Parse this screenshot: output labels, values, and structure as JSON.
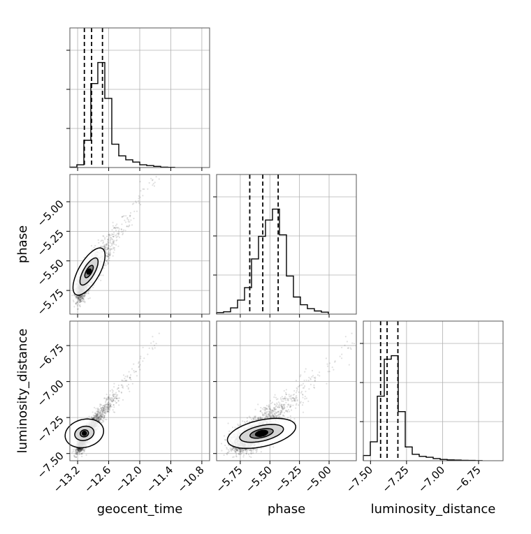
{
  "chart_data": {
    "type": "corner",
    "parameters": [
      "geocent_time",
      "phase",
      "luminosity_distance"
    ],
    "axis_labels": {
      "x": [
        "geocent_time",
        "phase",
        "luminosity_distance"
      ],
      "y": [
        "phase",
        "luminosity_distance"
      ]
    },
    "ranges": {
      "geocent_time": [
        -13.35,
        -10.65
      ],
      "phase": [
        -5.95,
        -4.77
      ],
      "luminosity_distance": [
        -7.55,
        -6.58
      ]
    },
    "ticks": {
      "geocent_time": [
        -13.2,
        -12.6,
        -12.0,
        -11.4,
        -10.8
      ],
      "phase": [
        -5.75,
        -5.5,
        -5.25,
        -5.0
      ],
      "luminosity_distance": [
        -7.5,
        -7.25,
        -7.0,
        -6.75
      ]
    },
    "tick_labels": {
      "geocent_time": [
        "−13.2",
        "−12.6",
        "−12.0",
        "−11.4",
        "−10.8"
      ],
      "phase": [
        "−5.75",
        "−5.50",
        "−5.25",
        "−5.00"
      ],
      "luminosity_distance": [
        "−7.50",
        "−7.25",
        "−7.00",
        "−6.75"
      ]
    },
    "grid": true,
    "quantiles": {
      "geocent_time": [
        -13.07,
        -12.93,
        -12.72
      ],
      "phase": [
        -5.67,
        -5.56,
        -5.43
      ],
      "luminosity_distance": [
        -7.43,
        -7.385,
        -7.31
      ]
    },
    "histograms": {
      "geocent_time": {
        "edges": [
          -13.35,
          -13.215,
          -13.08,
          -12.945,
          -12.81,
          -12.675,
          -12.54,
          -12.405,
          -12.27,
          -12.135,
          -12.0,
          -11.865,
          -11.73,
          -11.595,
          -11.46,
          -11.325
        ],
        "counts": [
          0.5,
          3.5,
          35,
          108,
          135,
          89,
          30,
          15,
          10,
          7,
          3.5,
          2.5,
          1.5,
          0.5,
          0.3
        ]
      },
      "phase": {
        "edges": [
          -5.95,
          -5.891,
          -5.832,
          -5.773,
          -5.714,
          -5.655,
          -5.596,
          -5.537,
          -5.478,
          -5.419,
          -5.36,
          -5.301,
          -5.242,
          -5.183,
          -5.124,
          -5.065,
          -5.006
        ],
        "counts": [
          2,
          3,
          8,
          18,
          34,
          71,
          100,
          121,
          135,
          102,
          49,
          22,
          12,
          7,
          4,
          2.5
        ]
      },
      "luminosity_distance": {
        "edges": [
          -7.55,
          -7.5015,
          -7.453,
          -7.4045,
          -7.356,
          -7.3075,
          -7.259,
          -7.2105,
          -7.162,
          -7.1135,
          -7.065,
          -7.0165,
          -6.968,
          -6.9195,
          -6.871,
          -6.8225,
          -6.774,
          -6.7255
        ],
        "counts": [
          6,
          22,
          75,
          118,
          122,
          57,
          16,
          7.5,
          5,
          4,
          2.5,
          1.5,
          1,
          0.7,
          0.5,
          0.3,
          0.2
        ]
      }
    },
    "samples_relation": {
      "n_points": 2600,
      "phase_vs_geocent_time": "strong positive correlation",
      "luminosity_distance_vs_geocent_time": "strong positive correlation",
      "luminosity_distance_vs_phase": "strong positive correlation"
    },
    "contour_peaks": {
      "phase_vs_geocent_time": {
        "x": -12.98,
        "y": -5.59
      },
      "luminosity_distance_vs_geocent_time": {
        "x": -13.07,
        "y": -7.36
      },
      "luminosity_distance_vs_phase": {
        "x": -5.57,
        "y": -7.36
      }
    }
  }
}
